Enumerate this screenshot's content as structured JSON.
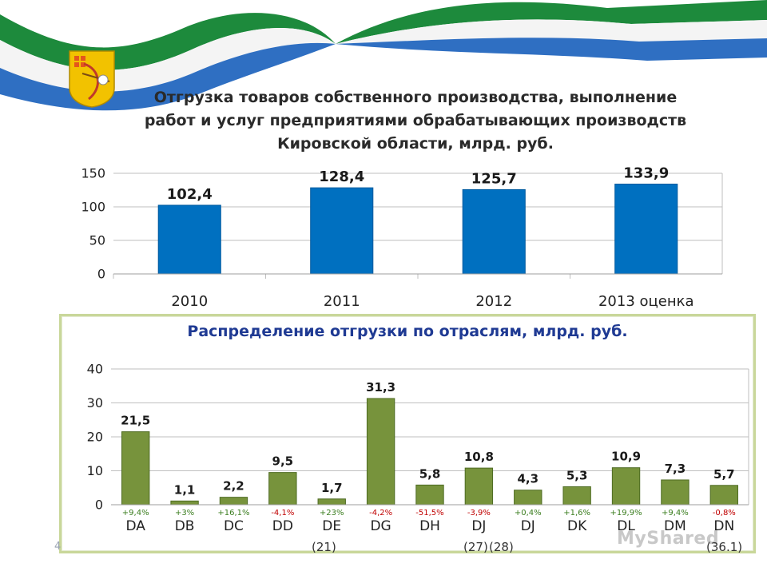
{
  "header": {
    "title": "Отгрузка товаров собственного производства, выполнение\nработ и услуг предприятиями обрабатывающих производств\nКировской области, млрд. руб."
  },
  "chart_data": [
    {
      "type": "bar",
      "categories": [
        "2010",
        "2011",
        "2012",
        "2013 оценка"
      ],
      "values": [
        102.4,
        128.4,
        125.7,
        133.9
      ],
      "value_labels": [
        "102,4",
        "128,4",
        "125,7",
        "133,9"
      ],
      "yticks": [
        "0",
        "50",
        "100",
        "150"
      ],
      "ylim": [
        0,
        150
      ],
      "grid": true,
      "color": "#0070c0"
    },
    {
      "type": "bar",
      "title": "Распределение отгрузки по отраслям, млрд. руб.",
      "categories": [
        "DA",
        "DB",
        "DC",
        "DD",
        "DE",
        "DG",
        "DH",
        "DJ",
        "DJ",
        "DK",
        "DL",
        "DM",
        "DN"
      ],
      "values": [
        21.5,
        1.1,
        2.2,
        9.5,
        1.7,
        31.3,
        5.8,
        10.8,
        4.3,
        5.3,
        10.9,
        7.3,
        5.7
      ],
      "value_labels": [
        "21,5",
        "1,1",
        "2,2",
        "9,5",
        "1,7",
        "31,3",
        "5,8",
        "10,8",
        "4,3",
        "5,3",
        "10,9",
        "7,3",
        "5,7"
      ],
      "annotations": [
        "+9,4%",
        "+3%",
        "+16,1%",
        "-4,1%",
        "+23%",
        "-4,2%",
        "-51,5%",
        "-3,9%",
        "+0,4%",
        "+1,6%",
        "+19,9%",
        "+9,4%",
        "-0,8%"
      ],
      "annotation_colors": [
        "#3a7d1e",
        "#3a7d1e",
        "#3a7d1e",
        "#c00000",
        "#3a7d1e",
        "#c00000",
        "#c00000",
        "#c00000",
        "#3a7d1e",
        "#3a7d1e",
        "#3a7d1e",
        "#3a7d1e",
        "#c00000"
      ],
      "yticks": [
        "0",
        "10",
        "20",
        "30",
        "40"
      ],
      "ylim": [
        0,
        40
      ],
      "grid": true,
      "color": "#77933c"
    }
  ],
  "footnotes": {
    "page": "4",
    "n21": "(21)",
    "n27": "(27)",
    "n28": "(28)",
    "n36": "(36.1)"
  },
  "watermark": "MyShared"
}
